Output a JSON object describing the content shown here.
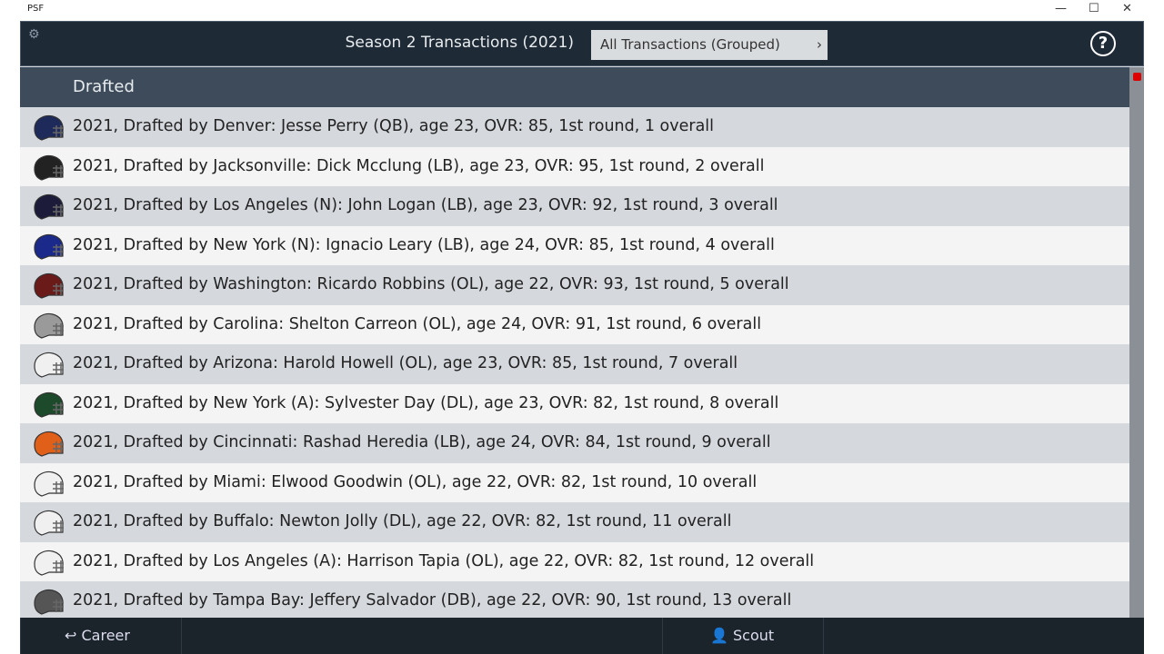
{
  "window": {
    "title": "PSF"
  },
  "header": {
    "title": "Season 2 Transactions (2021)",
    "filter": "All Transactions (Grouped)",
    "help": "?"
  },
  "section": {
    "title": "Drafted"
  },
  "rows": [
    {
      "text": "2021, Drafted by Denver: Jesse Perry (QB), age 23, OVR: 85, 1st round, 1 overall",
      "helmet": "#1e2a5a"
    },
    {
      "text": "2021, Drafted by Jacksonville: Dick Mcclung (LB), age 23, OVR: 95, 1st round, 2 overall",
      "helmet": "#222222"
    },
    {
      "text": "2021, Drafted by Los Angeles (N): John Logan (LB), age 23, OVR: 92, 1st round, 3 overall",
      "helmet": "#1c1c3a"
    },
    {
      "text": "2021, Drafted by New York (N): Ignacio Leary (LB), age 24, OVR: 85, 1st round, 4 overall",
      "helmet": "#1b2a8a"
    },
    {
      "text": "2021, Drafted by Washington: Ricardo Robbins (OL), age 22, OVR: 93, 1st round, 5 overall",
      "helmet": "#6b1a1a"
    },
    {
      "text": "2021, Drafted by Carolina: Shelton Carreon (OL), age 24, OVR: 91, 1st round, 6 overall",
      "helmet": "#9a9a9a"
    },
    {
      "text": "2021, Drafted by Arizona: Harold Howell (OL), age 23, OVR: 85, 1st round, 7 overall",
      "helmet": "#f0f0f0"
    },
    {
      "text": "2021, Drafted by New York (A): Sylvester Day (DL), age 23, OVR: 82, 1st round, 8 overall",
      "helmet": "#1d4a2a"
    },
    {
      "text": "2021, Drafted by Cincinnati: Rashad Heredia (LB), age 24, OVR: 84, 1st round, 9 overall",
      "helmet": "#e0601a"
    },
    {
      "text": "2021, Drafted by Miami: Elwood Goodwin (OL), age 22, OVR: 82, 1st round, 10 overall",
      "helmet": "#f0f0f0"
    },
    {
      "text": "2021, Drafted by Buffalo: Newton Jolly (DL), age 22, OVR: 82, 1st round, 11 overall",
      "helmet": "#f0f0f0"
    },
    {
      "text": "2021, Drafted by Los Angeles (A): Harrison Tapia (OL), age 22, OVR: 82, 1st round, 12 overall",
      "helmet": "#f0f0f0"
    },
    {
      "text": "2021, Drafted by Tampa Bay: Jeffery Salvador (DB), age 22, OVR: 90, 1st round, 13 overall",
      "helmet": "#555555"
    }
  ],
  "footer": {
    "left": "Career",
    "right": "Scout"
  }
}
